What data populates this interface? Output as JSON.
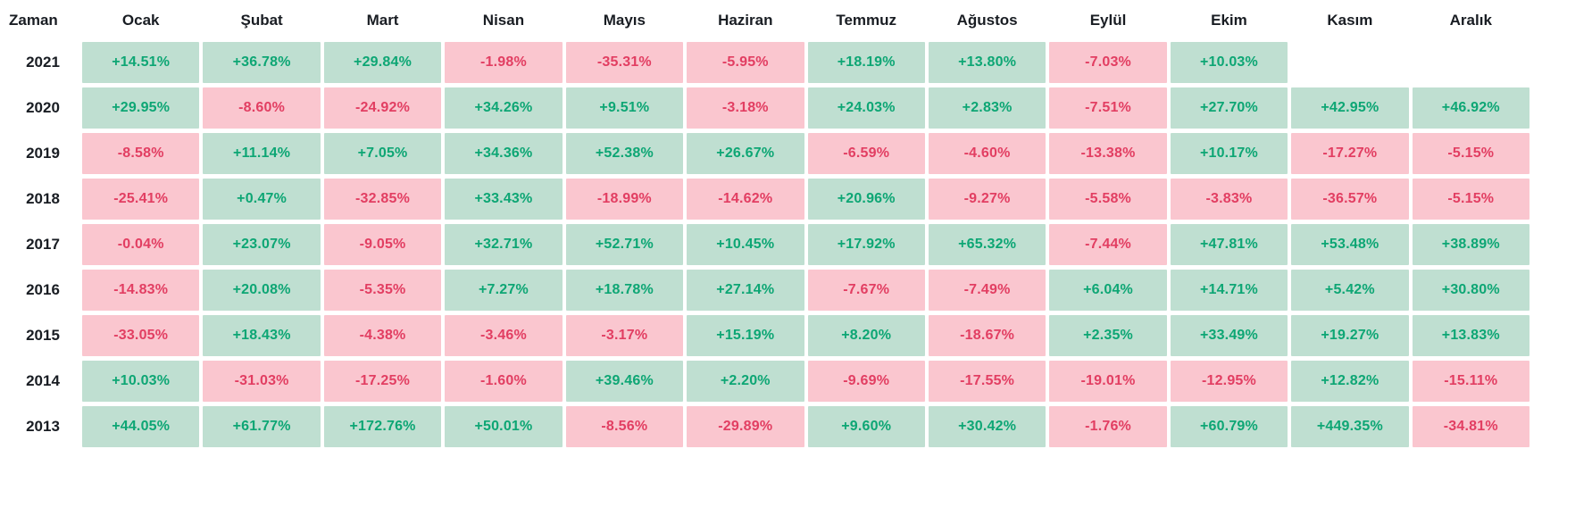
{
  "colors": {
    "positive_bg": "#bfdfd1",
    "negative_bg": "#fac6cf",
    "positive_text": "#0da674",
    "negative_text": "#e23e62",
    "header_text": "#191d23"
  },
  "table": {
    "corner_label": "Zaman",
    "months": [
      "Ocak",
      "Şubat",
      "Mart",
      "Nisan",
      "Mayıs",
      "Haziran",
      "Temmuz",
      "Ağustos",
      "Eylül",
      "Ekim",
      "Kasım",
      "Aralık"
    ],
    "rows": [
      {
        "year": "2021",
        "values": [
          "+14.51%",
          "+36.78%",
          "+29.84%",
          "-1.98%",
          "-35.31%",
          "-5.95%",
          "+18.19%",
          "+13.80%",
          "-7.03%",
          "+10.03%",
          "",
          ""
        ]
      },
      {
        "year": "2020",
        "values": [
          "+29.95%",
          "-8.60%",
          "-24.92%",
          "+34.26%",
          "+9.51%",
          "-3.18%",
          "+24.03%",
          "+2.83%",
          "-7.51%",
          "+27.70%",
          "+42.95%",
          "+46.92%"
        ]
      },
      {
        "year": "2019",
        "values": [
          "-8.58%",
          "+11.14%",
          "+7.05%",
          "+34.36%",
          "+52.38%",
          "+26.67%",
          "-6.59%",
          "-4.60%",
          "-13.38%",
          "+10.17%",
          "-17.27%",
          "-5.15%"
        ]
      },
      {
        "year": "2018",
        "values": [
          "-25.41%",
          "+0.47%",
          "-32.85%",
          "+33.43%",
          "-18.99%",
          "-14.62%",
          "+20.96%",
          "-9.27%",
          "-5.58%",
          "-3.83%",
          "-36.57%",
          "-5.15%"
        ]
      },
      {
        "year": "2017",
        "values": [
          "-0.04%",
          "+23.07%",
          "-9.05%",
          "+32.71%",
          "+52.71%",
          "+10.45%",
          "+17.92%",
          "+65.32%",
          "-7.44%",
          "+47.81%",
          "+53.48%",
          "+38.89%"
        ]
      },
      {
        "year": "2016",
        "values": [
          "-14.83%",
          "+20.08%",
          "-5.35%",
          "+7.27%",
          "+18.78%",
          "+27.14%",
          "-7.67%",
          "-7.49%",
          "+6.04%",
          "+14.71%",
          "+5.42%",
          "+30.80%"
        ]
      },
      {
        "year": "2015",
        "values": [
          "-33.05%",
          "+18.43%",
          "-4.38%",
          "-3.46%",
          "-3.17%",
          "+15.19%",
          "+8.20%",
          "-18.67%",
          "+2.35%",
          "+33.49%",
          "+19.27%",
          "+13.83%"
        ]
      },
      {
        "year": "2014",
        "values": [
          "+10.03%",
          "-31.03%",
          "-17.25%",
          "-1.60%",
          "+39.46%",
          "+2.20%",
          "-9.69%",
          "-17.55%",
          "-19.01%",
          "-12.95%",
          "+12.82%",
          "-15.11%"
        ]
      },
      {
        "year": "2013",
        "values": [
          "+44.05%",
          "+61.77%",
          "+172.76%",
          "+50.01%",
          "-8.56%",
          "-29.89%",
          "+9.60%",
          "+30.42%",
          "-1.76%",
          "+60.79%",
          "+449.35%",
          "-34.81%"
        ]
      }
    ]
  },
  "chart_data": {
    "type": "heatmap",
    "title": "Monthly returns heatmap (Zaman)",
    "x_categories": [
      "Ocak",
      "Şubat",
      "Mart",
      "Nisan",
      "Mayıs",
      "Haziran",
      "Temmuz",
      "Ağustos",
      "Eylül",
      "Ekim",
      "Kasım",
      "Aralık"
    ],
    "y_categories": [
      "2021",
      "2020",
      "2019",
      "2018",
      "2017",
      "2016",
      "2015",
      "2014",
      "2013"
    ],
    "values_unit": "percent",
    "values": [
      [
        14.51,
        36.78,
        29.84,
        -1.98,
        -35.31,
        -5.95,
        18.19,
        13.8,
        -7.03,
        10.03,
        null,
        null
      ],
      [
        29.95,
        -8.6,
        -24.92,
        34.26,
        9.51,
        -3.18,
        24.03,
        2.83,
        -7.51,
        27.7,
        42.95,
        46.92
      ],
      [
        -8.58,
        11.14,
        7.05,
        34.36,
        52.38,
        26.67,
        -6.59,
        -4.6,
        -13.38,
        10.17,
        -17.27,
        -5.15
      ],
      [
        -25.41,
        0.47,
        -32.85,
        33.43,
        -18.99,
        -14.62,
        20.96,
        -9.27,
        -5.58,
        -3.83,
        -36.57,
        -5.15
      ],
      [
        -0.04,
        23.07,
        -9.05,
        32.71,
        52.71,
        10.45,
        17.92,
        65.32,
        -7.44,
        47.81,
        53.48,
        38.89
      ],
      [
        -14.83,
        20.08,
        -5.35,
        7.27,
        18.78,
        27.14,
        -7.67,
        -7.49,
        6.04,
        14.71,
        5.42,
        30.8
      ],
      [
        -33.05,
        18.43,
        -4.38,
        -3.46,
        -3.17,
        15.19,
        8.2,
        -18.67,
        2.35,
        33.49,
        19.27,
        13.83
      ],
      [
        10.03,
        -31.03,
        -17.25,
        -1.6,
        39.46,
        2.2,
        -9.69,
        -17.55,
        -19.01,
        -12.95,
        12.82,
        -15.11
      ],
      [
        44.05,
        61.77,
        172.76,
        50.01,
        -8.56,
        -29.89,
        9.6,
        30.42,
        -1.76,
        60.79,
        449.35,
        -34.81
      ]
    ],
    "legend": "none",
    "color_coding": "green = positive monthly return, pink = negative monthly return"
  }
}
